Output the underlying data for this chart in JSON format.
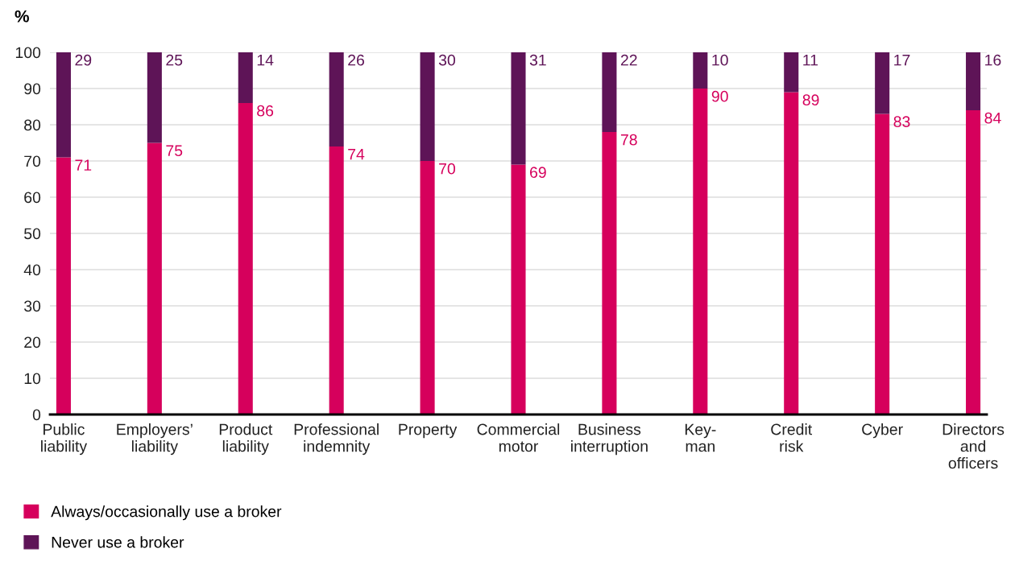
{
  "chart_data": {
    "type": "bar",
    "stacked": true,
    "ylabel": "%",
    "categories": [
      "Public\nliability",
      "Employers’\nliability",
      "Product\nliability",
      "Professional\nindemnity",
      "Property",
      "Commercial\nmotor",
      "Business\ninterruption",
      "Key-\nman",
      "Credit\nrisk",
      "Cyber",
      "Directors\nand\nofficers"
    ],
    "series": [
      {
        "name": "Always/occasionally use a broker",
        "color": "#d6005c",
        "values": [
          71,
          75,
          86,
          74,
          70,
          69,
          78,
          90,
          89,
          83,
          84
        ]
      },
      {
        "name": "Never use a broker",
        "color": "#5e1457",
        "values": [
          29,
          25,
          14,
          26,
          30,
          31,
          22,
          10,
          11,
          17,
          16
        ]
      }
    ],
    "ylim": [
      0,
      100
    ],
    "yticks": [
      0,
      10,
      20,
      30,
      40,
      50,
      60,
      70,
      80,
      90,
      100
    ],
    "grid": "y",
    "legend": "bottom",
    "data_labels": true
  }
}
